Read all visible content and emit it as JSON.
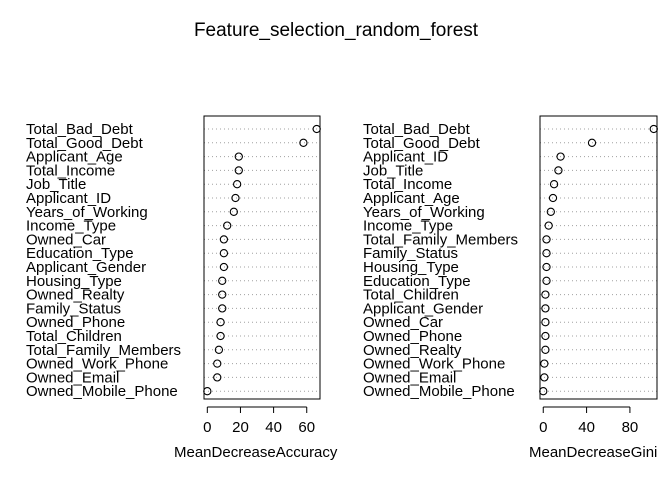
{
  "title": "Feature_selection_random_forest",
  "chart_data": [
    {
      "type": "scatter",
      "xlabel": "MeanDecreaseAccuracy",
      "xlim": [
        -2,
        68
      ],
      "xticks": [
        0,
        20,
        40,
        60
      ],
      "grid": "dotted-horizontal",
      "labels": [
        "Total_Bad_Debt",
        "Total_Good_Debt",
        "Applicant_Age",
        "Total_Income",
        "Job_Title",
        "Applicant_ID",
        "Years_of_Working",
        "Income_Type",
        "Owned_Car",
        "Education_Type",
        "Applicant_Gender",
        "Housing_Type",
        "Owned_Realty",
        "Family_Status",
        "Owned_Phone",
        "Total_Children",
        "Total_Family_Members",
        "Owned_Work_Phone",
        "Owned_Email",
        "Owned_Mobile_Phone"
      ],
      "values": [
        66,
        58,
        19,
        19,
        18,
        17,
        16,
        12,
        10,
        10,
        10,
        9,
        9,
        9,
        8,
        8,
        7,
        6,
        6,
        0
      ]
    },
    {
      "type": "scatter",
      "xlabel": "MeanDecreaseGini",
      "xlim": [
        -3,
        105
      ],
      "xticks": [
        0,
        40,
        80
      ],
      "grid": "dotted-horizontal",
      "labels": [
        "Total_Bad_Debt",
        "Total_Good_Debt",
        "Applicant_ID",
        "Job_Title",
        "Total_Income",
        "Applicant_Age",
        "Years_of_Working",
        "Income_Type",
        "Total_Family_Members",
        "Family_Status",
        "Housing_Type",
        "Education_Type",
        "Total_Children",
        "Applicant_Gender",
        "Owned_Car",
        "Owned_Phone",
        "Owned_Realty",
        "Owned_Work_Phone",
        "Owned_Email",
        "Owned_Mobile_Phone"
      ],
      "values": [
        102,
        45,
        16,
        14,
        10,
        9,
        7,
        5,
        3,
        3,
        3,
        3,
        2,
        2,
        2,
        2,
        2,
        1,
        1,
        0
      ]
    }
  ]
}
